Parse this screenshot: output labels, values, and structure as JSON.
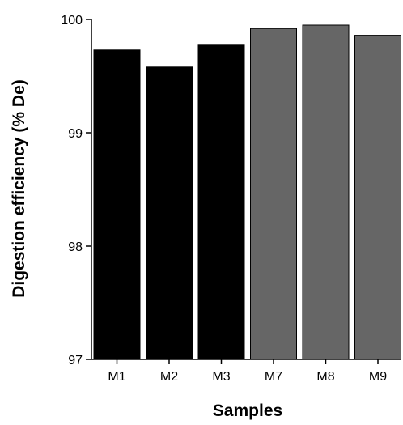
{
  "chart_data": {
    "type": "bar",
    "title": "",
    "xlabel": "Samples",
    "ylabel": "Digestion efficiency (% De)",
    "categories": [
      "M1",
      "M2",
      "M3",
      "M7",
      "M8",
      "M9"
    ],
    "values": [
      99.73,
      99.58,
      99.78,
      99.92,
      99.95,
      99.86
    ],
    "bar_colors": [
      "#000000",
      "#000000",
      "#000000",
      "#666666",
      "#666666",
      "#666666"
    ],
    "ylim": [
      97,
      100
    ],
    "yticks": [
      97,
      98,
      99,
      100
    ],
    "grid": false,
    "legend": "none"
  }
}
